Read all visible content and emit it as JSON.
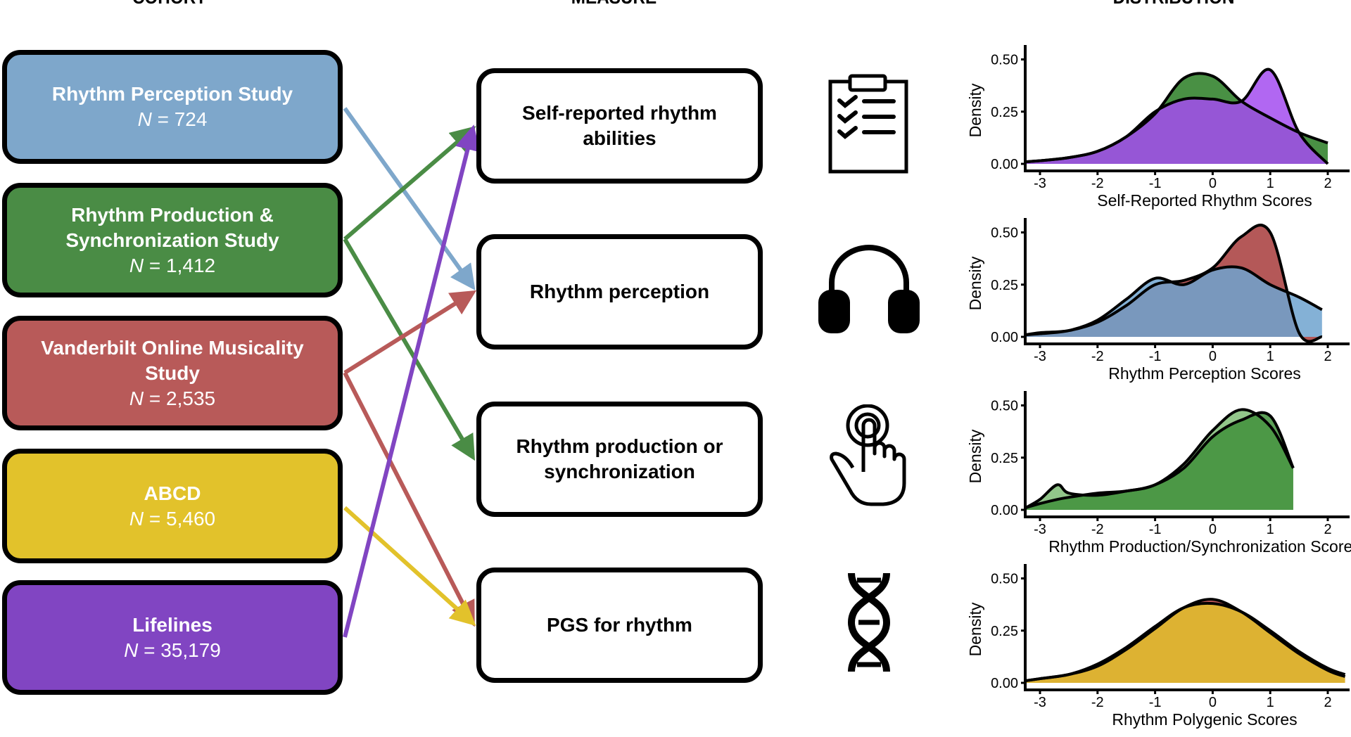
{
  "headers": {
    "cohort": "COHORT",
    "measure": "MEASURE",
    "distribution": "DISTRIBUTION"
  },
  "cohorts": [
    {
      "name": "Rhythm Perception Study",
      "n_label": "N",
      "n_value": " = 724",
      "color": "#7ea7cb"
    },
    {
      "name": "Rhythm Production & Synchronization Study",
      "n_label": "N",
      "n_value": " = 1,412",
      "color": "#4a8c45"
    },
    {
      "name": "Vanderbilt Online Musicality Study",
      "n_label": "N",
      "n_value": " = 2,535",
      "color": "#b85a59"
    },
    {
      "name": "ABCD",
      "n_label": "N",
      "n_value": " = 5,460",
      "color": "#e2c22b"
    },
    {
      "name": "Lifelines",
      "n_label": "N",
      "n_value": " = 35,179",
      "color": "#8145c2"
    }
  ],
  "measures": [
    {
      "label": "Self-reported rhythm abilities",
      "icon": "clipboard-checklist-icon"
    },
    {
      "label": "Rhythm perception",
      "icon": "headphones-icon"
    },
    {
      "label": "Rhythm production or synchronization",
      "icon": "finger-tap-icon"
    },
    {
      "label": "PGS for rhythm",
      "icon": "dna-icon"
    }
  ],
  "links": [
    {
      "from": "Rhythm Perception Study",
      "to": "Rhythm perception",
      "color": "#7ea7cb"
    },
    {
      "from": "Rhythm Production & Synchronization Study",
      "to": "Self-reported rhythm abilities",
      "color": "#4a8c45"
    },
    {
      "from": "Rhythm Production & Synchronization Study",
      "to": "Rhythm production or synchronization",
      "color": "#4a8c45"
    },
    {
      "from": "Vanderbilt Online Musicality Study",
      "to": "Rhythm perception",
      "color": "#b85a59"
    },
    {
      "from": "Vanderbilt Online Musicality Study",
      "to": "PGS for rhythm",
      "color": "#b85a59"
    },
    {
      "from": "ABCD",
      "to": "PGS for rhythm",
      "color": "#e2c22b"
    },
    {
      "from": "Lifelines",
      "to": "Self-reported rhythm abilities",
      "color": "#8145c2"
    }
  ],
  "chart_data": [
    {
      "type": "area",
      "xlabel": "Self-Reported Rhythm Scores",
      "ylabel": "Density",
      "xlim": [
        -3.25,
        2.3
      ],
      "ylim": [
        0,
        0.5
      ],
      "xticks": [
        "-3",
        "-2",
        "-1",
        "0",
        "1",
        "2"
      ],
      "yticks": [
        "0.00",
        "0.25",
        "0.50"
      ],
      "x": [
        -3.25,
        -3,
        -2.5,
        -2,
        -1.5,
        -1,
        -0.5,
        0,
        0.5,
        1,
        1.5,
        2
      ],
      "series": [
        {
          "values": [
            0.01,
            0.015,
            0.03,
            0.06,
            0.13,
            0.24,
            0.41,
            0.42,
            0.3,
            0.22,
            0.15,
            0.1
          ],
          "color": "#3f8a3a"
        },
        {
          "values": [
            0.01,
            0.015,
            0.03,
            0.06,
            0.13,
            0.25,
            0.31,
            0.31,
            0.3,
            0.45,
            0.15,
            0.0
          ],
          "color": "#a34cf0"
        }
      ]
    },
    {
      "type": "area",
      "xlabel": "Rhythm Perception Scores",
      "ylabel": "Density",
      "xlim": [
        -3.25,
        2.3
      ],
      "ylim": [
        0,
        0.5
      ],
      "xticks": [
        "-3",
        "-2",
        "-1",
        "0",
        "1",
        "2"
      ],
      "yticks": [
        "0.00",
        "0.25",
        "0.50"
      ],
      "x": [
        -3.25,
        -3,
        -2.5,
        -2,
        -1.5,
        -1,
        -0.5,
        0,
        0.5,
        1,
        1.5,
        1.9
      ],
      "series": [
        {
          "values": [
            0.01,
            0.02,
            0.03,
            0.07,
            0.15,
            0.25,
            0.27,
            0.33,
            0.48,
            0.5,
            0.02,
            0.0
          ],
          "color": "#b04f4f"
        },
        {
          "values": [
            0.01,
            0.015,
            0.03,
            0.08,
            0.18,
            0.28,
            0.25,
            0.32,
            0.33,
            0.25,
            0.19,
            0.13
          ],
          "color": "#6fa3cf"
        }
      ]
    },
    {
      "type": "area",
      "xlabel": "Rhythm Production/Synchronization Scores",
      "ylabel": "Density",
      "xlim": [
        -3.25,
        2.3
      ],
      "ylim": [
        0,
        0.5
      ],
      "xticks": [
        "-3",
        "-2",
        "-1",
        "0",
        "1",
        "2"
      ],
      "yticks": [
        "0.00",
        "0.25",
        "0.50"
      ],
      "x": [
        -3.25,
        -3,
        -2.7,
        -2.5,
        -2,
        -1.5,
        -1,
        -0.5,
        0,
        0.5,
        1,
        1.4
      ],
      "series": [
        {
          "values": [
            0.01,
            0.05,
            0.12,
            0.08,
            0.07,
            0.09,
            0.12,
            0.22,
            0.38,
            0.48,
            0.4,
            0.2
          ],
          "color": "#8cc384"
        },
        {
          "values": [
            0.01,
            0.03,
            0.05,
            0.06,
            0.08,
            0.09,
            0.12,
            0.2,
            0.35,
            0.43,
            0.45,
            0.2
          ],
          "color": "#3f8f3a"
        }
      ]
    },
    {
      "type": "area",
      "xlabel": "Rhythm Polygenic Scores",
      "ylabel": "Density",
      "xlim": [
        -3.25,
        2.3
      ],
      "ylim": [
        0,
        0.5
      ],
      "xticks": [
        "-3",
        "-2",
        "-1",
        "0",
        "1",
        "2"
      ],
      "yticks": [
        "0.00",
        "0.25",
        "0.50"
      ],
      "x": [
        -3.25,
        -3,
        -2.5,
        -2,
        -1.5,
        -1,
        -0.5,
        0,
        0.5,
        1,
        1.5,
        2,
        2.3
      ],
      "series": [
        {
          "values": [
            0.01,
            0.02,
            0.04,
            0.08,
            0.16,
            0.26,
            0.36,
            0.4,
            0.34,
            0.24,
            0.14,
            0.06,
            0.03
          ],
          "color": "#c0504f"
        },
        {
          "values": [
            0.01,
            0.02,
            0.04,
            0.09,
            0.17,
            0.27,
            0.36,
            0.38,
            0.34,
            0.25,
            0.15,
            0.07,
            0.04
          ],
          "color": "#e2c22b"
        }
      ]
    }
  ]
}
